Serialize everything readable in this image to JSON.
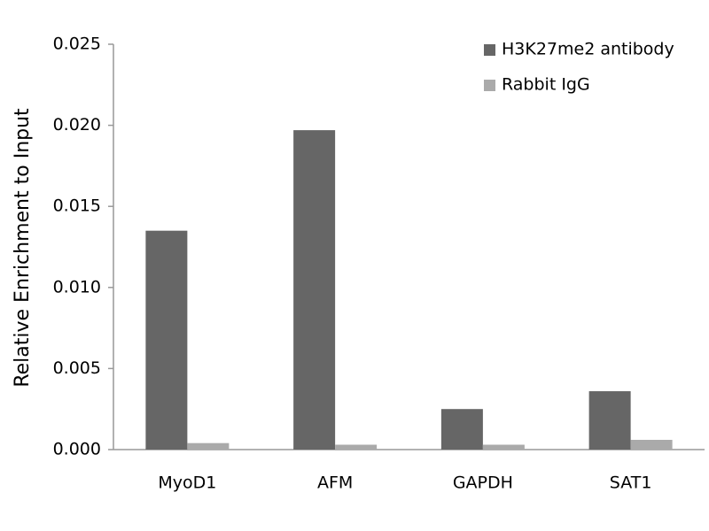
{
  "chart_data": {
    "type": "bar",
    "y_label": "Relative Enrichment to Input",
    "categories": [
      "MyoD1",
      "AFM",
      "GAPDH",
      "SAT1"
    ],
    "series": [
      {
        "name": "H3K27me2 antibody",
        "color": "#666666",
        "values": [
          0.0135,
          0.0197,
          0.0025,
          0.0036
        ]
      },
      {
        "name": "Rabbit IgG",
        "color": "#aaaaaa",
        "values": [
          0.0004,
          0.0003,
          0.0003,
          0.0006
        ]
      }
    ],
    "ylim": [
      0,
      0.025
    ],
    "yticks": [
      {
        "value": 0,
        "label": "0.000"
      },
      {
        "value": 0.005,
        "label": "0.005"
      },
      {
        "value": 0.01,
        "label": "0.010"
      },
      {
        "value": 0.015,
        "label": "0.015"
      },
      {
        "value": 0.02,
        "label": "0.020"
      },
      {
        "value": 0.025,
        "label": "0.025"
      }
    ],
    "grid": false,
    "legend": "top-right"
  }
}
